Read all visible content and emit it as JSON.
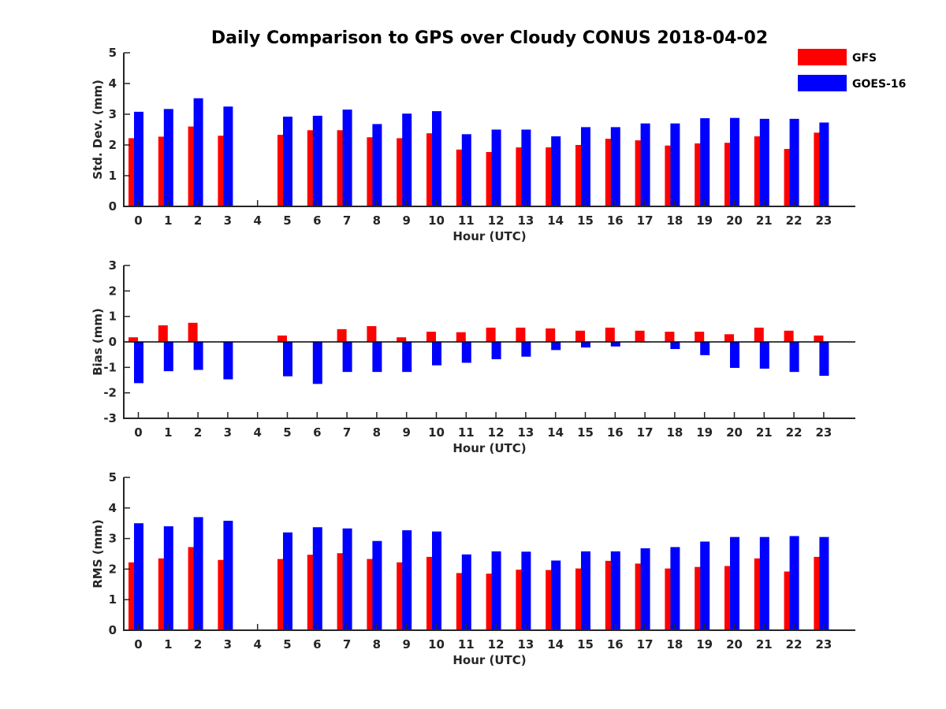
{
  "title": "Daily Comparison to GPS over Cloudy CONUS 2018-04-02",
  "legend": [
    {
      "label": "GFS",
      "color": "#ff0000"
    },
    {
      "label": "GOES-16",
      "color": "#0000ff"
    }
  ],
  "colors": {
    "gfs": "#ff0000",
    "goes": "#0000ff",
    "axis": "#262626"
  },
  "chart_data": [
    {
      "type": "bar",
      "xlabel": "Hour (UTC)",
      "ylabel": "Std. Dev. (mm)",
      "ylim": [
        0,
        5
      ],
      "yticks": [
        0,
        1,
        2,
        3,
        4,
        5
      ],
      "categories": [
        "0",
        "1",
        "2",
        "3",
        "4",
        "5",
        "6",
        "7",
        "8",
        "9",
        "10",
        "11",
        "12",
        "13",
        "14",
        "15",
        "16",
        "17",
        "18",
        "19",
        "20",
        "21",
        "22",
        "23"
      ],
      "series": [
        {
          "name": "GFS",
          "values": [
            2.22,
            2.27,
            2.6,
            2.3,
            null,
            2.33,
            2.48,
            2.48,
            2.25,
            2.22,
            2.38,
            1.85,
            1.77,
            1.92,
            1.92,
            2.0,
            2.2,
            2.15,
            1.98,
            2.05,
            2.07,
            2.28,
            1.87,
            2.4
          ]
        },
        {
          "name": "GOES-16",
          "values": [
            3.08,
            3.17,
            3.52,
            3.25,
            null,
            2.92,
            2.95,
            3.15,
            2.68,
            3.02,
            3.1,
            2.35,
            2.5,
            2.5,
            2.28,
            2.58,
            2.58,
            2.7,
            2.7,
            2.87,
            2.88,
            2.85,
            2.85,
            2.73
          ]
        }
      ]
    },
    {
      "type": "bar",
      "xlabel": "Hour (UTC)",
      "ylabel": "Bias (mm)",
      "ylim": [
        -3,
        3
      ],
      "yticks": [
        -3,
        -2,
        -1,
        0,
        1,
        2,
        3
      ],
      "categories": [
        "0",
        "1",
        "2",
        "3",
        "4",
        "5",
        "6",
        "7",
        "8",
        "9",
        "10",
        "11",
        "12",
        "13",
        "14",
        "15",
        "16",
        "17",
        "18",
        "19",
        "20",
        "21",
        "22",
        "23"
      ],
      "series": [
        {
          "name": "GFS",
          "values": [
            0.18,
            0.65,
            0.75,
            0.0,
            null,
            0.25,
            0.0,
            0.5,
            0.62,
            0.18,
            0.4,
            0.38,
            0.56,
            0.56,
            0.53,
            0.44,
            0.56,
            0.44,
            0.4,
            0.4,
            0.3,
            0.56,
            0.44,
            0.25
          ]
        },
        {
          "name": "GOES-16",
          "values": [
            -1.62,
            -1.15,
            -1.1,
            -1.47,
            null,
            -1.35,
            -1.65,
            -1.18,
            -1.18,
            -1.18,
            -0.92,
            -0.82,
            -0.68,
            -0.58,
            -0.32,
            -0.22,
            -0.18,
            -0.02,
            -0.28,
            -0.52,
            -1.02,
            -1.05,
            -1.18,
            -1.33
          ]
        }
      ]
    },
    {
      "type": "bar",
      "xlabel": "Hour (UTC)",
      "ylabel": "RMS (mm)",
      "ylim": [
        0,
        5
      ],
      "yticks": [
        0,
        1,
        2,
        3,
        4,
        5
      ],
      "categories": [
        "0",
        "1",
        "2",
        "3",
        "4",
        "5",
        "6",
        "7",
        "8",
        "9",
        "10",
        "11",
        "12",
        "13",
        "14",
        "15",
        "16",
        "17",
        "18",
        "19",
        "20",
        "21",
        "22",
        "23"
      ],
      "series": [
        {
          "name": "GFS",
          "values": [
            2.22,
            2.35,
            2.72,
            2.3,
            null,
            2.33,
            2.47,
            2.52,
            2.33,
            2.22,
            2.4,
            1.87,
            1.85,
            1.98,
            1.97,
            2.02,
            2.27,
            2.18,
            2.02,
            2.07,
            2.1,
            2.35,
            1.92,
            2.4
          ]
        },
        {
          "name": "GOES-16",
          "values": [
            3.5,
            3.4,
            3.7,
            3.58,
            null,
            3.2,
            3.37,
            3.33,
            2.92,
            3.27,
            3.23,
            2.48,
            2.58,
            2.57,
            2.28,
            2.58,
            2.58,
            2.68,
            2.72,
            2.9,
            3.05,
            3.05,
            3.08,
            3.05
          ]
        }
      ]
    }
  ]
}
